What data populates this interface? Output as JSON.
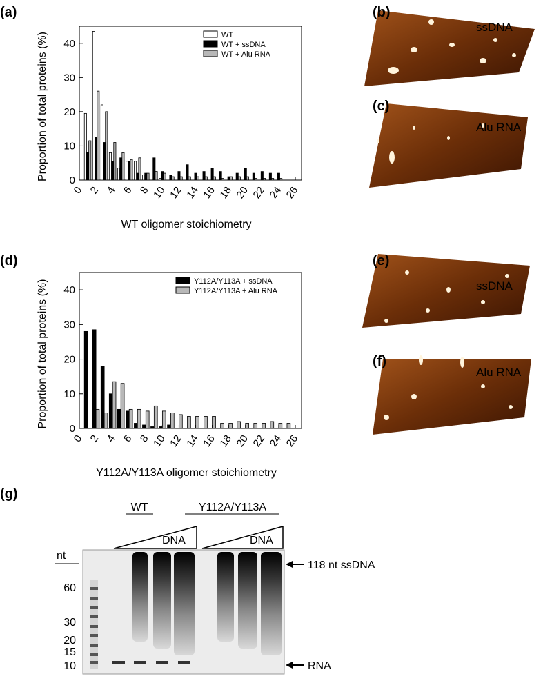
{
  "panel_labels": [
    "(a)",
    "(b)",
    "(c)",
    "(d)",
    "(e)",
    "(f)",
    "(g)"
  ],
  "afm_labels": [
    "ssDNA",
    "Alu RNA",
    "ssDNA",
    "Alu RNA"
  ],
  "chart_data": [
    {
      "type": "bar",
      "ylabel": "Proportion of total proteins (%)",
      "xlabel": "WT oligomer stoichiometry",
      "x": [
        1,
        2,
        3,
        4,
        5,
        6,
        7,
        8,
        9,
        10,
        11,
        12,
        13,
        14,
        15,
        16,
        17,
        18,
        19,
        20,
        21,
        22,
        23,
        24,
        25
      ],
      "series": [
        {
          "name": "WT",
          "color": "#ffffff",
          "values": [
            19.5,
            43.5,
            22,
            8,
            3.5,
            5.5,
            5.5,
            1.5,
            0,
            0.5,
            0,
            0,
            0,
            0,
            0,
            0,
            0,
            0,
            0,
            0,
            0,
            0,
            0,
            0,
            0
          ]
        },
        {
          "name": "WT + ssDNA",
          "color": "#000000",
          "values": [
            8,
            12.5,
            11,
            5.5,
            6.5,
            5.5,
            2,
            2,
            6.5,
            2.5,
            1.5,
            2.5,
            4.5,
            2,
            2.5,
            3.5,
            2.5,
            1,
            2,
            3.5,
            2,
            2.5,
            2,
            2,
            0
          ]
        },
        {
          "name": "WT + Alu RNA",
          "color": "#b8b8b8",
          "values": [
            11.5,
            26,
            20,
            11,
            8,
            6,
            6.5,
            2,
            2.5,
            2,
            1,
            1,
            1,
            1,
            1,
            1,
            0.5,
            1,
            1,
            1,
            0.5,
            0.5,
            0.5,
            0.5,
            0
          ]
        }
      ],
      "xlim": [
        0,
        26
      ],
      "ylim": [
        0,
        45
      ],
      "xticks": [
        0,
        2,
        4,
        6,
        8,
        10,
        12,
        14,
        16,
        18,
        20,
        22,
        24,
        26
      ],
      "yticks": [
        0,
        10,
        20,
        30,
        40
      ],
      "legend": "upper right"
    },
    {
      "type": "bar",
      "ylabel": "Proportion of total proteins (%)",
      "xlabel": "Y112A/Y113A oligomer stoichiometry",
      "x": [
        1,
        2,
        3,
        4,
        5,
        6,
        7,
        8,
        9,
        10,
        11,
        12,
        13,
        14,
        15,
        16,
        17,
        18,
        19,
        20,
        21,
        22,
        23,
        24,
        25
      ],
      "series": [
        {
          "name": "Y112A/Y113A + ssDNA",
          "color": "#000000",
          "values": [
            28,
            28.5,
            18,
            10,
            5.5,
            5,
            1.5,
            1,
            0.5,
            0.5,
            1,
            0,
            0,
            0,
            0,
            0,
            0,
            0,
            0,
            0,
            0,
            0,
            0,
            0,
            0
          ]
        },
        {
          "name": "Y112A/Y113A + Alu RNA",
          "color": "#b8b8b8",
          "values": [
            0,
            5.5,
            4.5,
            13.5,
            13,
            5.5,
            5.5,
            5,
            6.5,
            5,
            4.5,
            4,
            3.5,
            3.5,
            3.5,
            3.5,
            1.5,
            1.5,
            2,
            1.5,
            1.5,
            1.5,
            2,
            1.5,
            1.5
          ]
        }
      ],
      "xlim": [
        0,
        26
      ],
      "ylim": [
        0,
        45
      ],
      "xticks": [
        0,
        2,
        4,
        6,
        8,
        10,
        12,
        14,
        16,
        18,
        20,
        22,
        24,
        26
      ],
      "yticks": [
        0,
        10,
        20,
        30,
        40
      ],
      "legend": "upper right"
    }
  ],
  "gel": {
    "groups": [
      "WT",
      "Y112A/Y113A"
    ],
    "gradient_labels": [
      "DNA",
      "DNA"
    ],
    "marker_unit": "nt",
    "markers": [
      "60",
      "30",
      "20",
      "15",
      "10"
    ],
    "annotations": [
      "118 nt ssDNA",
      "RNA"
    ]
  }
}
